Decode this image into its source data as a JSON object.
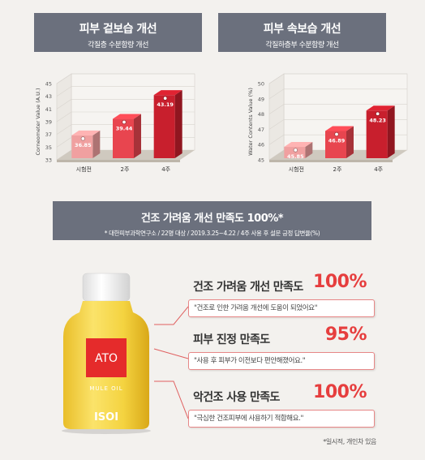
{
  "charts": {
    "left": {
      "title": "피부 겉보습 개선",
      "subtitle": "각질층 수분함량 개선"
    },
    "right": {
      "title": "피부 속보습 개선",
      "subtitle": "각질하층부 수분함량 개선"
    }
  },
  "chart_data": [
    {
      "type": "bar",
      "title": "피부 겉보습 개선",
      "subtitle": "각질층 수분함량 개선",
      "categories": [
        "시험전",
        "2주",
        "4주"
      ],
      "values": [
        36.85,
        39.44,
        43.19
      ],
      "value_labels": [
        "36.85",
        "39.44",
        "43.19"
      ],
      "ylabel": "Corneometer Value (A.U.)",
      "yticks": [
        "45",
        "43",
        "41",
        "39",
        "37",
        "35",
        "33"
      ],
      "ylim": [
        33,
        45
      ],
      "colors": [
        "#f0a0a0",
        "#e8454f",
        "#c81f2d"
      ],
      "grid": true
    },
    {
      "type": "bar",
      "title": "피부 속보습 개선",
      "subtitle": "각질하층부 수분함량 개선",
      "categories": [
        "시험전",
        "2주",
        "4주"
      ],
      "values": [
        45.85,
        46.89,
        48.23
      ],
      "value_labels": [
        "45.85",
        "46.89",
        "48.23"
      ],
      "ylabel": "Water Contents Value (%)",
      "yticks": [
        "50",
        "49",
        "48",
        "47",
        "46",
        "45"
      ],
      "ylim": [
        45,
        50
      ],
      "colors": [
        "#f0a0a0",
        "#e8454f",
        "#c81f2d"
      ],
      "grid": true
    }
  ],
  "banner": {
    "title": "건조 가려움 개선 만족도 100%*",
    "subtitle": "* 대한피부과학연구소 / 22명 대상 / 2019.3.25~4.22 / 4주 사용 후 설문 긍정 답변율(%)"
  },
  "product": {
    "label_brand": "ATO",
    "label_line": "ISOI",
    "label_sub": "MULE OIL",
    "colors": {
      "oil": "#f5d84a",
      "label": "#e52b2b",
      "cap": "#ffffff"
    }
  },
  "satisfaction": [
    {
      "title": "건조 가려움 개선 만족도",
      "percent": "100%",
      "quote": "\"건조로 인한 가려움 개선에 도움이 되었어요\""
    },
    {
      "title": "피부 진정 만족도",
      "percent": "95%",
      "quote": "\"사용 후 피부가 이전보다 편안해졌어요.\""
    },
    {
      "title": "악건조 사용 만족도",
      "percent": "100%",
      "quote": "\"극심한 건조피부에 사용하기 적합해요.\""
    }
  ],
  "footnote": "*일시적, 개인차 있음"
}
